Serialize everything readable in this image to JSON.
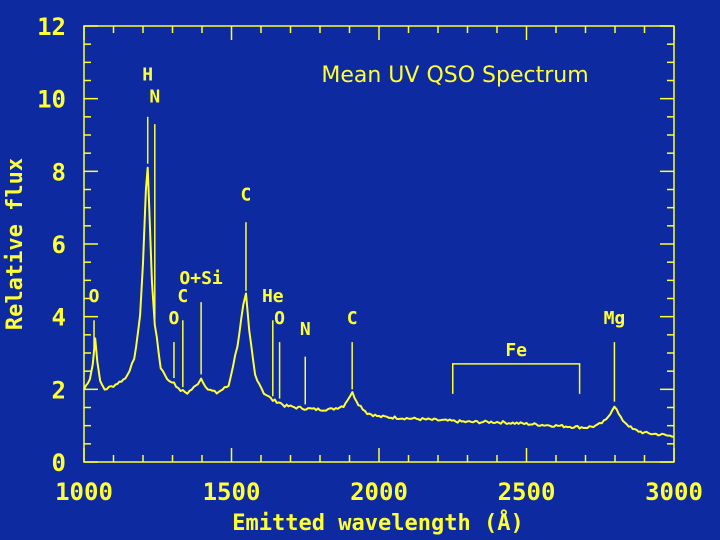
{
  "colors": {
    "background": "#0d2aa0",
    "foreground": "#ffff33"
  },
  "chart_data": {
    "type": "line",
    "title": "Mean UV QSO Spectrum",
    "xlabel": "Emitted wavelength (Å)",
    "ylabel": "Relative flux",
    "xlim": [
      1000,
      3000
    ],
    "ylim": [
      0,
      12
    ],
    "x_ticks": [
      "1000",
      "1500",
      "2000",
      "2500",
      "3000"
    ],
    "y_ticks": [
      "0",
      "2",
      "4",
      "6",
      "8",
      "10",
      "12"
    ],
    "grid": false,
    "series": [
      {
        "x": [
          1000,
          1020,
          1030,
          1038,
          1045,
          1055,
          1070,
          1100,
          1140,
          1170,
          1190,
          1200,
          1210,
          1216,
          1222,
          1230,
          1240,
          1260,
          1290,
          1305,
          1320,
          1350,
          1380,
          1397,
          1420,
          1450,
          1490,
          1520,
          1540,
          1549,
          1560,
          1580,
          1610,
          1640,
          1660,
          1680,
          1720,
          1780,
          1840,
          1880,
          1900,
          1910,
          1930,
          1960,
          2000,
          2100,
          2200,
          2300,
          2400,
          2500,
          2600,
          2700,
          2740,
          2770,
          2798,
          2820,
          2860,
          2900,
          2960,
          3000
        ],
        "y": [
          2.0,
          2.3,
          2.7,
          3.4,
          2.8,
          2.2,
          2.0,
          2.1,
          2.3,
          2.8,
          4.0,
          5.5,
          7.5,
          8.1,
          6.8,
          5.0,
          3.8,
          2.6,
          2.2,
          2.2,
          2.0,
          1.9,
          2.1,
          2.3,
          2.0,
          1.9,
          2.1,
          3.2,
          4.3,
          4.6,
          3.6,
          2.4,
          1.9,
          1.7,
          1.65,
          1.55,
          1.5,
          1.45,
          1.45,
          1.55,
          1.8,
          1.9,
          1.6,
          1.35,
          1.25,
          1.2,
          1.15,
          1.1,
          1.1,
          1.05,
          1.0,
          0.95,
          1.0,
          1.15,
          1.55,
          1.2,
          0.9,
          0.8,
          0.75,
          0.7
        ]
      }
    ],
    "line_labels": [
      {
        "text": "H",
        "x": 1216,
        "y": 10.5,
        "tick_top": 9.5
      },
      {
        "text": "N",
        "x": 1240,
        "y": 9.9,
        "tick_top": 9.3
      },
      {
        "text": "O",
        "x": 1034,
        "y": 4.4,
        "tick_top": 3.9
      },
      {
        "text": "C",
        "x": 1335,
        "y": 4.4,
        "tick_top": 3.9
      },
      {
        "text": "O",
        "x": 1305,
        "y": 3.8,
        "tick_top": 3.3
      },
      {
        "text": "O+Si",
        "x": 1397,
        "y": 4.9,
        "tick_top": 4.4
      },
      {
        "text": "C",
        "x": 1549,
        "y": 7.2,
        "tick_top": 6.6
      },
      {
        "text": "He",
        "x": 1640,
        "y": 4.4,
        "tick_top": 3.9
      },
      {
        "text": "O",
        "x": 1663,
        "y": 3.8,
        "tick_top": 3.3
      },
      {
        "text": "N",
        "x": 1750,
        "y": 3.5,
        "tick_top": 2.9
      },
      {
        "text": "C",
        "x": 1909,
        "y": 3.8,
        "tick_top": 3.3
      },
      {
        "text": "Mg",
        "x": 2798,
        "y": 3.8,
        "tick_top": 3.3
      }
    ],
    "bracket": {
      "text": "Fe",
      "x_start": 2250,
      "x_end": 2680,
      "y": 2.7
    }
  }
}
